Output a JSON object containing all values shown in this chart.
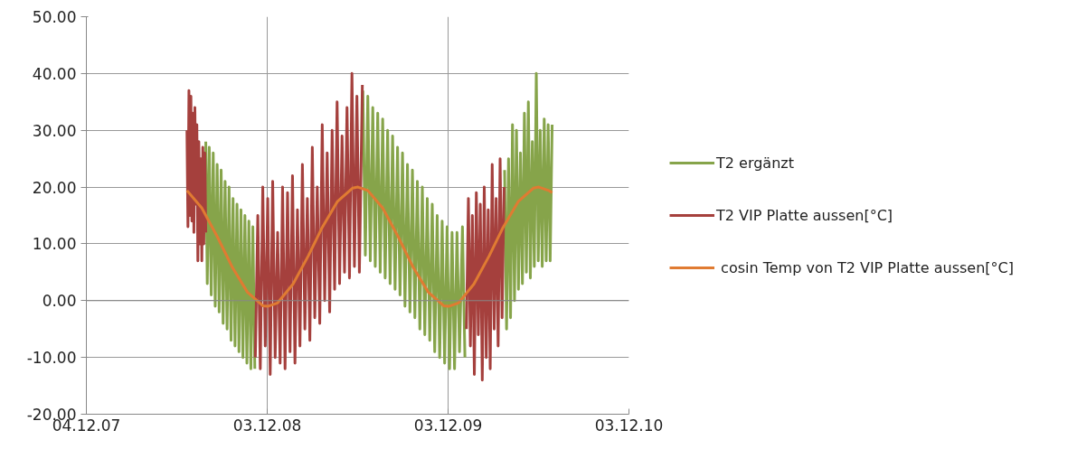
{
  "chart_data": {
    "type": "line",
    "xlim": [
      "2007-12-04",
      "2010-12-03"
    ],
    "ylim": [
      -20,
      50
    ],
    "xticks": [
      {
        "value": "2007-12-04",
        "label": "04.12.07"
      },
      {
        "value": "2008-12-03",
        "label": "03.12.08"
      },
      {
        "value": "2009-12-03",
        "label": "03.12.09"
      },
      {
        "value": "2010-12-03",
        "label": "03.12.10"
      }
    ],
    "yticks": [
      {
        "value": -20,
        "label": "-20.00"
      },
      {
        "value": -10,
        "label": "-10.00"
      },
      {
        "value": 0,
        "label": "0.00"
      },
      {
        "value": 10,
        "label": "10.00"
      },
      {
        "value": 20,
        "label": "20.00"
      },
      {
        "value": 30,
        "label": "30.00"
      },
      {
        "value": 40,
        "label": "40.00"
      },
      {
        "value": 50,
        "label": "50.00"
      }
    ],
    "grid": true,
    "legend": "right",
    "marker": "none",
    "line_style": "solid",
    "series": [
      {
        "name": "T2 ergänzt",
        "color": "#86a44a",
        "x": [
          "2008-08-01",
          "2008-08-04",
          "2008-08-08",
          "2008-08-12",
          "2008-08-16",
          "2008-08-20",
          "2008-08-24",
          "2008-08-28",
          "2008-09-01",
          "2008-09-05",
          "2008-09-09",
          "2008-09-13",
          "2008-09-17",
          "2008-09-21",
          "2008-09-25",
          "2008-09-29",
          "2008-10-03",
          "2008-10-07",
          "2008-10-11",
          "2008-10-15",
          "2008-10-19",
          "2008-10-23",
          "2008-10-27",
          "2008-10-31",
          "2008-11-04",
          "2008-11-08",
          "2009-01-01",
          "2009-06-14",
          "2009-06-19",
          "2009-06-24",
          "2009-06-29",
          "2009-07-04",
          "2009-07-09",
          "2009-07-14",
          "2009-07-19",
          "2009-07-24",
          "2009-07-29",
          "2009-08-03",
          "2009-08-08",
          "2009-08-13",
          "2009-08-18",
          "2009-08-23",
          "2009-08-28",
          "2009-09-02",
          "2009-09-07",
          "2009-09-12",
          "2009-09-17",
          "2009-09-22",
          "2009-09-27",
          "2009-10-02",
          "2009-10-07",
          "2009-10-12",
          "2009-10-17",
          "2009-10-22",
          "2009-10-27",
          "2009-11-01",
          "2009-11-06",
          "2009-11-11",
          "2009-11-16",
          "2009-11-21",
          "2009-11-26",
          "2009-12-01",
          "2009-12-06",
          "2009-12-11",
          "2009-12-16",
          "2009-12-21",
          "2009-12-26",
          "2010-01-01",
          "2010-01-06",
          "2010-02-15",
          "2010-03-27",
          "2010-03-31",
          "2010-04-04",
          "2010-04-08",
          "2010-04-12",
          "2010-04-16",
          "2010-04-20",
          "2010-04-24",
          "2010-04-28",
          "2010-05-02",
          "2010-05-06",
          "2010-05-10",
          "2010-05-14",
          "2010-05-18",
          "2010-05-22",
          "2010-05-26",
          "2010-05-30",
          "2010-06-03",
          "2010-06-07",
          "2010-06-11",
          "2010-06-15",
          "2010-06-19",
          "2010-06-23",
          "2010-06-27",
          "2010-07-01"
        ],
        "values": [
          28,
          3,
          27,
          1,
          26,
          -1,
          24,
          -2,
          23,
          -4,
          21,
          -5,
          20,
          -7,
          18,
          -8,
          17,
          -9,
          16,
          -10,
          15,
          -11,
          14,
          -12,
          13,
          -12,
          null,
          37,
          8,
          36,
          7,
          34,
          6,
          33,
          5,
          32,
          4,
          30,
          3,
          29,
          2,
          27,
          1,
          26,
          -1,
          24,
          -2,
          23,
          -3,
          21,
          -5,
          20,
          -6,
          18,
          -7,
          17,
          -9,
          15,
          -10,
          14,
          -11,
          13,
          -12,
          12,
          -12,
          12,
          -9,
          13,
          -10,
          null,
          23,
          -5,
          25,
          -3,
          31,
          0,
          30,
          2,
          26,
          3,
          33,
          5,
          35,
          4,
          28,
          6,
          40,
          7,
          30,
          6,
          32,
          7,
          31,
          7,
          31
        ]
      },
      {
        "name": "T2 VIP Platte aussen[°C]",
        "color": "#a5403d",
        "x": [
          "2008-06-24",
          "2008-06-26",
          "2008-06-28",
          "2008-06-30",
          "2008-07-02",
          "2008-07-04",
          "2008-07-06",
          "2008-07-08",
          "2008-07-10",
          "2008-07-12",
          "2008-07-14",
          "2008-07-16",
          "2008-07-18",
          "2008-07-20",
          "2008-07-22",
          "2008-07-24",
          "2008-07-26",
          "2008-07-28",
          "2008-07-30",
          "2008-08-01",
          "2008-09-15",
          "2008-11-09",
          "2008-11-14",
          "2008-11-19",
          "2008-11-24",
          "2008-11-29",
          "2008-12-04",
          "2008-12-09",
          "2008-12-14",
          "2008-12-19",
          "2008-12-24",
          "2008-12-29",
          "2009-01-03",
          "2009-01-08",
          "2009-01-13",
          "2009-01-18",
          "2009-01-23",
          "2009-01-28",
          "2009-02-02",
          "2009-02-07",
          "2009-02-12",
          "2009-02-17",
          "2009-02-22",
          "2009-02-27",
          "2009-03-04",
          "2009-03-09",
          "2009-03-14",
          "2009-03-19",
          "2009-03-24",
          "2009-03-29",
          "2009-04-03",
          "2009-04-08",
          "2009-04-13",
          "2009-04-18",
          "2009-04-23",
          "2009-04-28",
          "2009-05-03",
          "2009-05-08",
          "2009-05-13",
          "2009-05-18",
          "2009-05-23",
          "2009-05-28",
          "2009-06-02",
          "2009-06-07",
          "2009-06-13",
          "2009-09-01",
          "2010-01-09",
          "2010-01-13",
          "2010-01-17",
          "2010-01-21",
          "2010-01-25",
          "2010-01-29",
          "2010-02-02",
          "2010-02-06",
          "2010-02-10",
          "2010-02-14",
          "2010-02-18",
          "2010-02-22",
          "2010-02-26",
          "2010-03-02",
          "2010-03-06",
          "2010-03-10",
          "2010-03-14",
          "2010-03-18",
          "2010-03-22",
          "2010-03-26"
        ],
        "values": [
          30,
          13,
          37,
          15,
          36,
          14,
          33,
          12,
          34,
          17,
          31,
          7,
          28,
          10,
          25,
          7,
          27,
          10,
          26,
          12,
          null,
          -10,
          15,
          -12,
          20,
          -8,
          18,
          -13,
          21,
          -10,
          12,
          -11,
          20,
          -12,
          19,
          -9,
          22,
          -11,
          16,
          -8,
          24,
          -5,
          18,
          -7,
          27,
          -3,
          20,
          -4,
          31,
          0,
          26,
          -2,
          30,
          2,
          35,
          3,
          29,
          5,
          34,
          4,
          40,
          6,
          36,
          5,
          38,
          null,
          -5,
          18,
          -8,
          15,
          -13,
          19,
          -6,
          17,
          -14,
          20,
          -10,
          16,
          -12,
          24,
          -5,
          18,
          -8,
          25,
          -3,
          20
        ]
      },
      {
        "name": " cosin Temp von T2 VIP Platte aussen[°C]",
        "color": "#e07b32",
        "x": [
          "2008-06-24",
          "2008-07-24",
          "2008-08-24",
          "2008-09-24",
          "2008-10-24",
          "2008-11-24",
          "2008-12-04",
          "2008-12-24",
          "2009-01-24",
          "2009-02-24",
          "2009-03-24",
          "2009-04-24",
          "2009-05-24",
          "2009-06-04",
          "2009-06-24",
          "2009-07-24",
          "2009-08-24",
          "2009-09-24",
          "2009-10-24",
          "2009-11-24",
          "2009-12-04",
          "2009-12-24",
          "2010-01-24",
          "2010-02-24",
          "2010-03-24",
          "2010-04-24",
          "2010-05-24",
          "2010-06-04",
          "2010-06-24",
          "2010-07-01"
        ],
        "values": [
          19.4,
          16.3,
          11.3,
          5.8,
          1.5,
          -0.9,
          -1.0,
          -0.4,
          2.9,
          7.9,
          12.9,
          17.5,
          19.8,
          20.0,
          19.4,
          16.3,
          11.3,
          5.8,
          1.5,
          -0.9,
          -1.0,
          -0.4,
          2.9,
          7.9,
          12.9,
          17.5,
          19.8,
          20.0,
          19.4,
          19.0
        ]
      }
    ]
  }
}
